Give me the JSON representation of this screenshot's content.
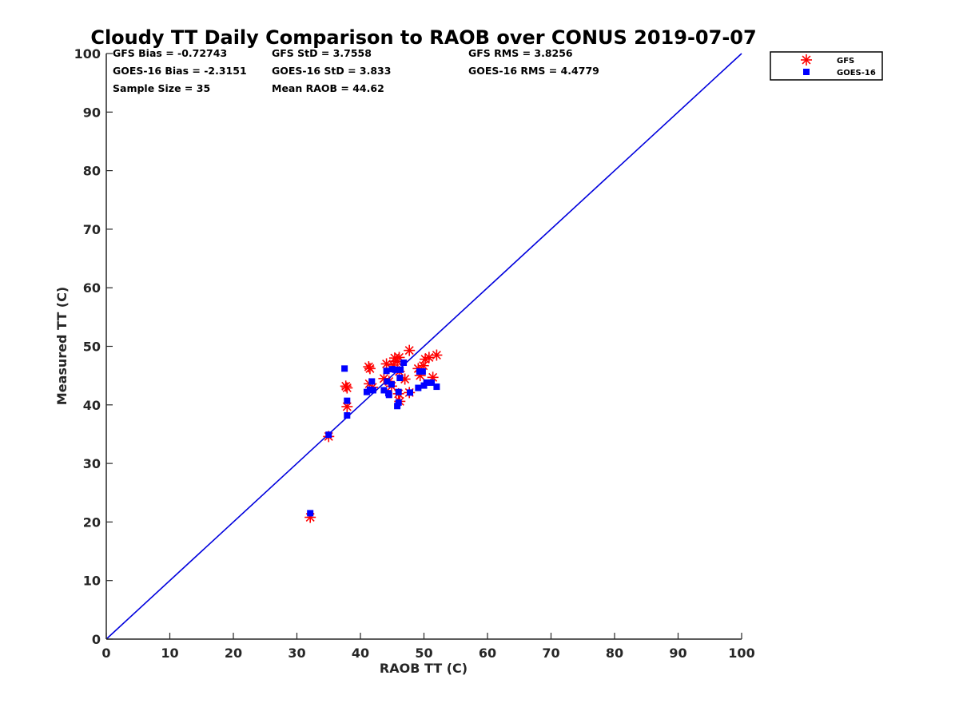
{
  "chart_data": {
    "type": "scatter",
    "title": "Cloudy TT Daily Comparison to RAOB over CONUS 2019-07-07",
    "xlabel": "RAOB TT (C)",
    "ylabel": "Measured TT (C)",
    "xlim": [
      0,
      100
    ],
    "ylim": [
      0,
      100
    ],
    "xticks": [
      "0",
      "10",
      "20",
      "30",
      "40",
      "50",
      "60",
      "70",
      "80",
      "90",
      "100"
    ],
    "yticks": [
      "0",
      "10",
      "20",
      "30",
      "40",
      "50",
      "60",
      "70",
      "80",
      "90",
      "100"
    ],
    "grid": false,
    "legend_position": "outside top-right",
    "reference_line": {
      "type": "1:1",
      "from": [
        0,
        0
      ],
      "to": [
        100,
        100
      ],
      "color": "#0000dd"
    },
    "stats": [
      [
        "GFS Bias = -0.72743",
        "GFS StD = 3.7558",
        "GFS RMS = 3.8256"
      ],
      [
        "GOES-16 Bias = -2.3151",
        "GOES-16 StD = 3.833",
        "GOES-16 RMS = 4.4779"
      ],
      [
        "Sample Size = 35",
        "Mean RAOB = 44.62",
        ""
      ]
    ],
    "series": [
      {
        "name": "GFS",
        "marker": "asterisk",
        "color": "#ff0000",
        "points": [
          [
            32.1,
            20.8
          ],
          [
            35.0,
            34.6
          ],
          [
            37.7,
            43.2
          ],
          [
            37.9,
            42.9
          ],
          [
            37.9,
            39.7
          ],
          [
            41.3,
            46.5
          ],
          [
            41.5,
            46.2
          ],
          [
            41.4,
            43.6
          ],
          [
            41.9,
            43.0
          ],
          [
            43.7,
            44.5
          ],
          [
            44.1,
            47.0
          ],
          [
            44.5,
            44.0
          ],
          [
            44.9,
            43.2
          ],
          [
            45.2,
            46.8
          ],
          [
            45.4,
            48.0
          ],
          [
            45.8,
            47.4
          ],
          [
            46.1,
            48.1
          ],
          [
            46.1,
            45.7
          ],
          [
            46.0,
            41.9
          ],
          [
            46.2,
            40.6
          ],
          [
            47.0,
            44.4
          ],
          [
            47.7,
            42.1
          ],
          [
            47.7,
            49.3
          ],
          [
            49.1,
            46.2
          ],
          [
            49.4,
            45.0
          ],
          [
            49.9,
            46.7
          ],
          [
            50.2,
            47.8
          ],
          [
            50.8,
            48.1
          ],
          [
            51.4,
            44.7
          ],
          [
            52.0,
            48.5
          ]
        ]
      },
      {
        "name": "GOES-16",
        "marker": "square",
        "color": "#0000ff",
        "points": [
          [
            32.1,
            21.5
          ],
          [
            35.0,
            34.9
          ],
          [
            37.5,
            46.2
          ],
          [
            37.9,
            40.7
          ],
          [
            37.9,
            38.2
          ],
          [
            41.0,
            42.2
          ],
          [
            41.5,
            42.6
          ],
          [
            41.8,
            44.0
          ],
          [
            42.0,
            42.5
          ],
          [
            43.7,
            42.5
          ],
          [
            44.1,
            45.8
          ],
          [
            44.2,
            44.0
          ],
          [
            44.4,
            42.0
          ],
          [
            44.5,
            41.7
          ],
          [
            44.9,
            43.5
          ],
          [
            45.0,
            46.1
          ],
          [
            45.5,
            46.0
          ],
          [
            45.8,
            39.8
          ],
          [
            46.0,
            40.4
          ],
          [
            46.0,
            42.2
          ],
          [
            46.2,
            44.6
          ],
          [
            46.3,
            46.0
          ],
          [
            46.8,
            47.2
          ],
          [
            47.8,
            42.1
          ],
          [
            49.1,
            42.9
          ],
          [
            49.3,
            45.7
          ],
          [
            49.8,
            45.7
          ],
          [
            50.0,
            43.3
          ],
          [
            50.4,
            43.8
          ],
          [
            51.2,
            43.8
          ],
          [
            52.0,
            43.1
          ]
        ]
      }
    ]
  }
}
